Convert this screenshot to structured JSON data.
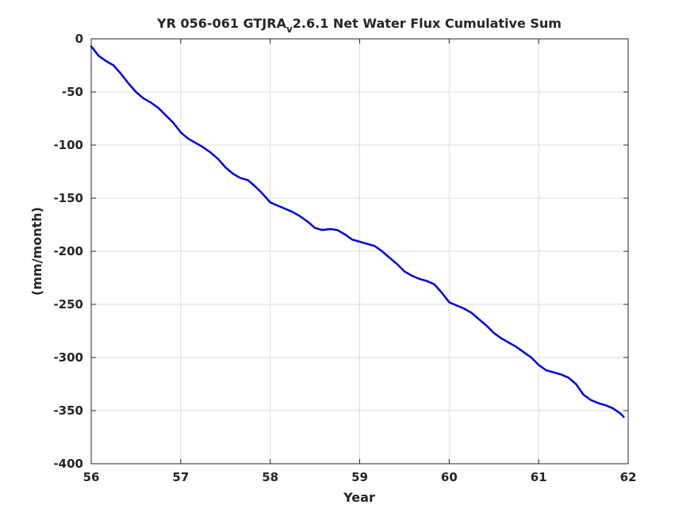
{
  "colors": {
    "line": "#0000dd",
    "grid": "#dcdcdc",
    "axis": "#262626",
    "background": "#ffffff"
  },
  "chart_data": {
    "type": "line",
    "title_parts": {
      "main": "YR 056-061 GTJRA",
      "subscript": "v",
      "suffix": "2.6.1 Net Water Flux Cumulative Sum"
    },
    "xlabel": "Year",
    "ylabel": "(mm/month)",
    "xlim": [
      56,
      62
    ],
    "ylim": [
      -400,
      0
    ],
    "xticks": [
      "56",
      "57",
      "58",
      "59",
      "60",
      "61",
      "62"
    ],
    "yticks": [
      "0",
      "-50",
      "-100",
      "-150",
      "-200",
      "-250",
      "-300",
      "-350",
      "-400"
    ],
    "grid": true,
    "series": [
      {
        "x": [
          56.0,
          56.083,
          56.167,
          56.25,
          56.333,
          56.417,
          56.5,
          56.583,
          56.667,
          56.75,
          56.833,
          56.917,
          57.0,
          57.083,
          57.167,
          57.25,
          57.333,
          57.417,
          57.5,
          57.583,
          57.667,
          57.75,
          57.833,
          57.917,
          58.0,
          58.083,
          58.167,
          58.25,
          58.333,
          58.417,
          58.5,
          58.583,
          58.667,
          58.75,
          58.833,
          58.917,
          59.0,
          59.083,
          59.167,
          59.25,
          59.333,
          59.417,
          59.5,
          59.583,
          59.667,
          59.75,
          59.833,
          59.917,
          60.0,
          60.083,
          60.167,
          60.25,
          60.333,
          60.417,
          60.5,
          60.583,
          60.667,
          60.75,
          60.833,
          60.917,
          61.0,
          61.083,
          61.167,
          61.25,
          61.333,
          61.417,
          61.5,
          61.583,
          61.667,
          61.75,
          61.833,
          61.917,
          61.95
        ],
        "y": [
          -7,
          -16,
          -21,
          -25,
          -33,
          -42,
          -50,
          -56,
          -60,
          -65,
          -72,
          -79,
          -88,
          -94,
          -98,
          -102,
          -107,
          -113,
          -121,
          -127,
          -131,
          -133,
          -139,
          -146,
          -154,
          -157,
          -160,
          -163,
          -167,
          -172,
          -178,
          -180,
          -179,
          -180,
          -184,
          -189,
          -191,
          -193,
          -195,
          -200,
          -206,
          -212,
          -219,
          -223,
          -226,
          -228,
          -231,
          -239,
          -248,
          -251,
          -254,
          -258,
          -264,
          -270,
          -277,
          -282,
          -286,
          -290,
          -295,
          -300,
          -307,
          -312,
          -314,
          -316,
          -319,
          -325,
          -335,
          -340,
          -343,
          -345,
          -348,
          -353,
          -356
        ]
      }
    ]
  }
}
